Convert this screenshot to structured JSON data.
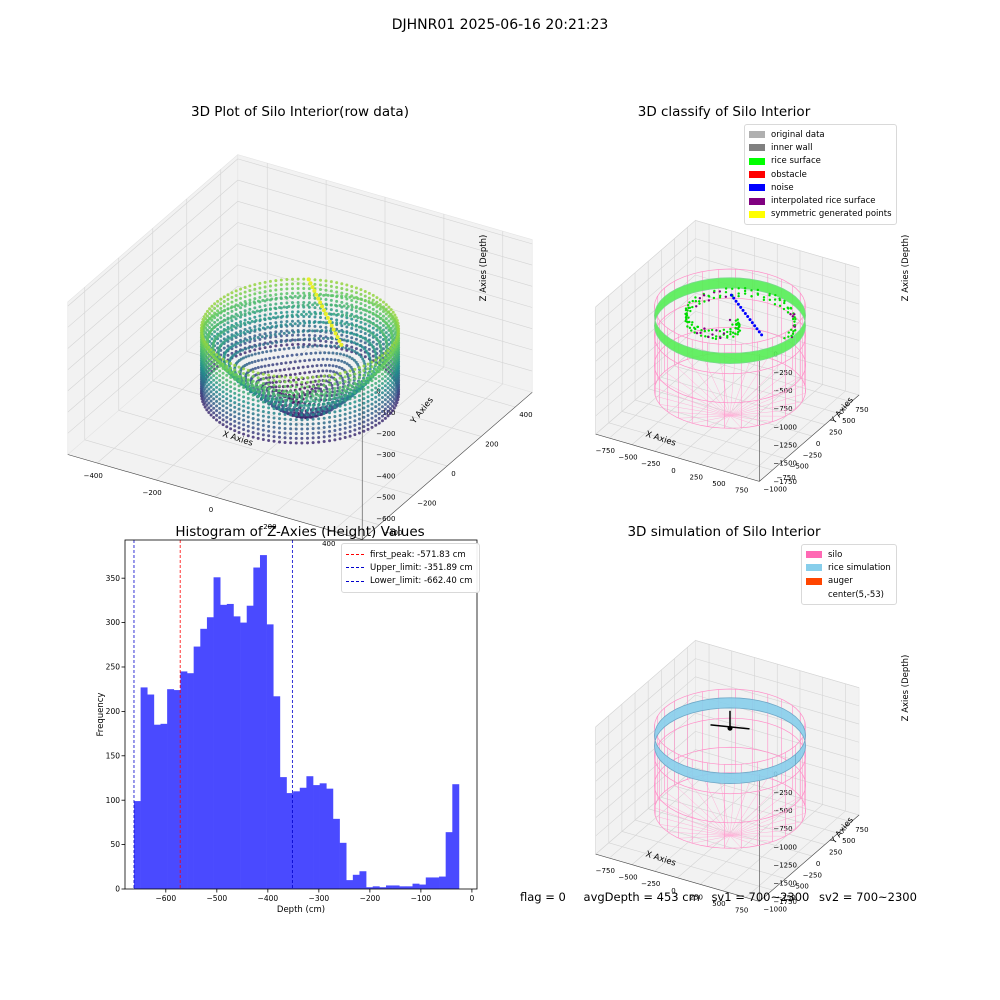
{
  "figure": {
    "suptitle": "DJHNR01 2025-06-16 20:21:23"
  },
  "panels": {
    "raw": {
      "title": "3D Plot of Silo Interior(row data)",
      "x_ticks": [
        "−400",
        "−200",
        "0",
        "200",
        "400"
      ],
      "y_ticks": [
        "−400",
        "−200",
        "0",
        "200",
        "400"
      ],
      "z_ticks": [
        "0",
        "−100",
        "−200",
        "−300",
        "−400",
        "−500",
        "−600"
      ]
    },
    "classify": {
      "title": "3D classify of Silo Interior",
      "x_ticks": [
        "−750",
        "−500",
        "−250",
        "0",
        "250",
        "500",
        "750"
      ],
      "y_ticks": [
        "−1000",
        "−750",
        "−500",
        "−250",
        "0",
        "250",
        "500",
        "750"
      ],
      "z_ticks": [
        "0",
        "−250",
        "−500",
        "−750",
        "−1000",
        "−1250",
        "−1500",
        "−1750"
      ],
      "legend": [
        {
          "label": "original data",
          "color": "#b0b0b0"
        },
        {
          "label": "inner wall",
          "color": "#808080"
        },
        {
          "label": "rice surface",
          "color": "#00ff00"
        },
        {
          "label": "obstacle",
          "color": "#ff0000"
        },
        {
          "label": "noise",
          "color": "#0000ff"
        },
        {
          "label": "interpolated rice surface",
          "color": "#800080"
        },
        {
          "label": "symmetric generated points",
          "color": "#ffff00"
        }
      ]
    },
    "simulation": {
      "title": "3D simulation of Silo Interior",
      "x_ticks": [
        "−750",
        "−500",
        "−250",
        "0",
        "250",
        "500",
        "750"
      ],
      "y_ticks": [
        "−1000",
        "−750",
        "−500",
        "−250",
        "0",
        "250",
        "500",
        "750"
      ],
      "z_ticks": [
        "0",
        "−250",
        "−500",
        "−750",
        "−1000",
        "−1250",
        "−1500",
        "−1750"
      ],
      "legend": [
        {
          "label": "silo",
          "color": "#ff69b4"
        },
        {
          "label": "rice simulation",
          "color": "#87ceeb"
        },
        {
          "label": "auger",
          "color": "#ff4500"
        },
        {
          "label": "center(5,-53)",
          "color": "#ffffff"
        }
      ]
    },
    "axis_labels": {
      "x": "X Axies",
      "y": "Y Axies",
      "z": "Z Axies (Depth)"
    }
  },
  "chart_data": {
    "type": "bar",
    "title": "Histogram of Z-Axies (Height) Values",
    "xlabel": "Depth (cm)",
    "ylabel": "Frequency",
    "xlim": [
      -680,
      10
    ],
    "ylim": [
      0,
      393
    ],
    "x_ticks": [
      -600,
      -500,
      -400,
      -300,
      -200,
      -100,
      0
    ],
    "y_ticks": [
      0,
      50,
      100,
      150,
      200,
      250,
      300,
      350
    ],
    "bar_color": "#4a4aff",
    "bin_start": -662.4,
    "bin_width": 13.0,
    "values": [
      99,
      227,
      219,
      185,
      186,
      225,
      224,
      245,
      243,
      273,
      293,
      306,
      351,
      320,
      321,
      307,
      300,
      319,
      362,
      376,
      298,
      217,
      126,
      108,
      110,
      114,
      127,
      117,
      119,
      113,
      79,
      52,
      10,
      16,
      20,
      2,
      3,
      2,
      4,
      4,
      3,
      3,
      6,
      5,
      13,
      13,
      14,
      64,
      118
    ],
    "reference_lines": [
      {
        "name": "first_peak: -571.83 cm",
        "x": -571.83,
        "color": "#ff0000"
      },
      {
        "name": "Upper_limit: -351.89 cm",
        "x": -351.89,
        "color": "#0000cc"
      },
      {
        "name": "Lower_limit: -662.40 cm",
        "x": -662.4,
        "color": "#0000cc"
      }
    ],
    "legend_position": "top-right"
  },
  "footer": {
    "flag": "flag = 0",
    "avg_depth": "avgDepth = 453 cm",
    "sv1": "sv1 = 700~2300",
    "sv2": "sv2 = 700~2300"
  }
}
